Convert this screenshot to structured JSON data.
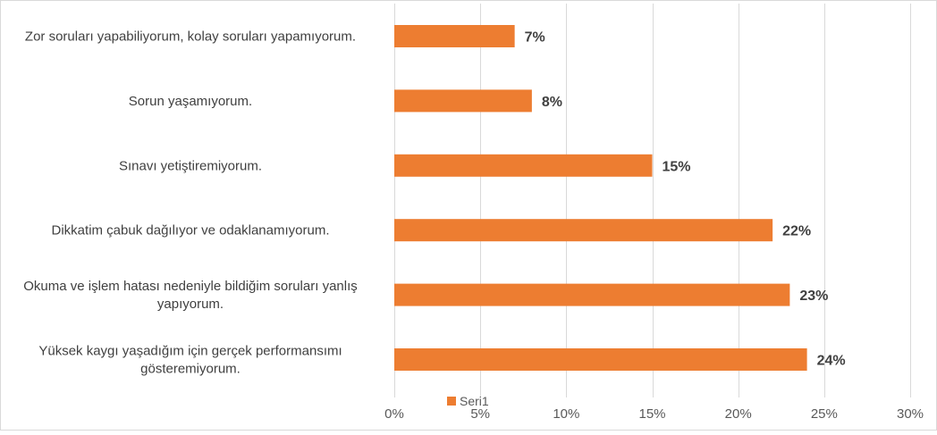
{
  "chart_data": {
    "type": "bar",
    "orientation": "horizontal",
    "title": "",
    "xlabel": "",
    "ylabel": "",
    "categories": [
      "Zor soruları yapabiliyorum, kolay soruları yapamıyorum.",
      "Sorun yaşamıyorum.",
      "Sınavı yetiştiremiyorum.",
      "Dikkatim çabuk dağılıyor ve odaklanamıyorum.",
      "Okuma ve işlem hatası nedeniyle bildiğim soruları yanlış yapıyorum.",
      "Yüksek kaygı yaşadığım için gerçek performansımı gösteremiyorum."
    ],
    "category_lines": [
      [
        "Zor soruları yapabiliyorum, kolay soruları yapamıyorum."
      ],
      [
        "Sorun yaşamıyorum."
      ],
      [
        "Sınavı yetiştiremiyorum."
      ],
      [
        "Dikkatim çabuk dağılıyor ve odaklanamıyorum."
      ],
      [
        "Okuma ve işlem hatası nedeniyle bildiğim soruları yanlış",
        "yapıyorum."
      ],
      [
        "Yüksek kaygı yaşadığım için gerçek performansımı",
        "gösteremiyorum."
      ]
    ],
    "series": [
      {
        "name": "Seri1",
        "values": [
          7,
          8,
          15,
          22,
          23,
          24
        ],
        "color": "#ED7D31"
      }
    ],
    "data_labels": [
      "7%",
      "8%",
      "15%",
      "22%",
      "23%",
      "24%"
    ],
    "xlim": [
      0,
      30
    ],
    "x_ticks": [
      0,
      5,
      10,
      15,
      20,
      25,
      30
    ],
    "x_tick_labels": [
      "0%",
      "5%",
      "10%",
      "15%",
      "20%",
      "25%",
      "30%"
    ],
    "grid": true,
    "gridline_color": "#D9D9D9",
    "legend_position": "bottom"
  }
}
